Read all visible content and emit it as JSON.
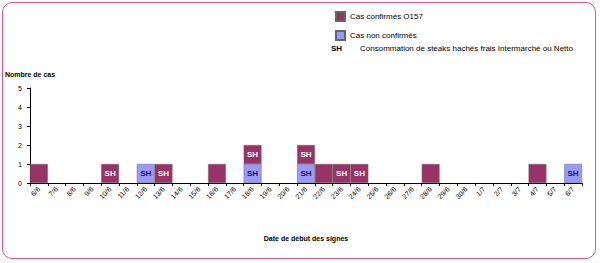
{
  "chart_data": {
    "type": "bar",
    "stacked": true,
    "x_label": "Date de début des signes",
    "y_label": "Nombre de cas",
    "categories": [
      "6/6",
      "7/6",
      "8/6",
      "9/6",
      "10/6",
      "11/6",
      "12/6",
      "13/6",
      "14/6",
      "15/6",
      "16/6",
      "17/6",
      "18/6",
      "19/6",
      "20/6",
      "21/6",
      "22/6",
      "23/6",
      "24/6",
      "25/6",
      "26/6",
      "27/6",
      "28/6",
      "29/6",
      "30/6",
      "1/7",
      "2/7",
      "3/7",
      "4/7",
      "5/7",
      "6/7"
    ],
    "series": [
      {
        "name": "Cas confirmés O157",
        "color": "#993366",
        "values": [
          1,
          0,
          0,
          0,
          1,
          0,
          0,
          1,
          0,
          0,
          1,
          0,
          1,
          0,
          0,
          1,
          1,
          1,
          1,
          0,
          0,
          0,
          1,
          0,
          0,
          0,
          0,
          0,
          1,
          0,
          0
        ]
      },
      {
        "name": "Cas non confirmés",
        "color": "#9999ff",
        "values": [
          0,
          0,
          0,
          0,
          0,
          0,
          1,
          0,
          0,
          0,
          0,
          0,
          1,
          0,
          0,
          1,
          0,
          0,
          0,
          0,
          0,
          0,
          0,
          0,
          0,
          0,
          0,
          0,
          0,
          0,
          1
        ]
      }
    ],
    "ylim": [
      0,
      5
    ],
    "yticks": [
      0,
      1,
      2,
      3,
      4,
      5
    ],
    "grid": false,
    "legend": "top-right",
    "annotation_key": {
      "label": "SH",
      "text": "Consommation de steaks hachés frais Intermarché ou Netto"
    },
    "annotations": [
      {
        "text": "SH",
        "series": "Cas confirmés O157",
        "category": "10/6"
      },
      {
        "text": "SH",
        "series": "Cas confirmés O157",
        "category": "13/6"
      },
      {
        "text": "SH",
        "series": "Cas confirmés O157",
        "category": "18/6"
      },
      {
        "text": "SH",
        "series": "Cas confirmés O157",
        "category": "21/6"
      },
      {
        "text": "SH",
        "series": "Cas confirmés O157",
        "category": "23/6"
      },
      {
        "text": "SH",
        "series": "Cas confirmés O157",
        "category": "24/6"
      },
      {
        "text": "SH",
        "series": "Cas non confirmés",
        "category": "12/6"
      },
      {
        "text": "SH",
        "series": "Cas non confirmés",
        "category": "18/6"
      },
      {
        "text": "SH",
        "series": "Cas non confirmés",
        "category": "21/6"
      },
      {
        "text": "SH",
        "series": "Cas non confirmés",
        "category": "6/7"
      }
    ]
  }
}
